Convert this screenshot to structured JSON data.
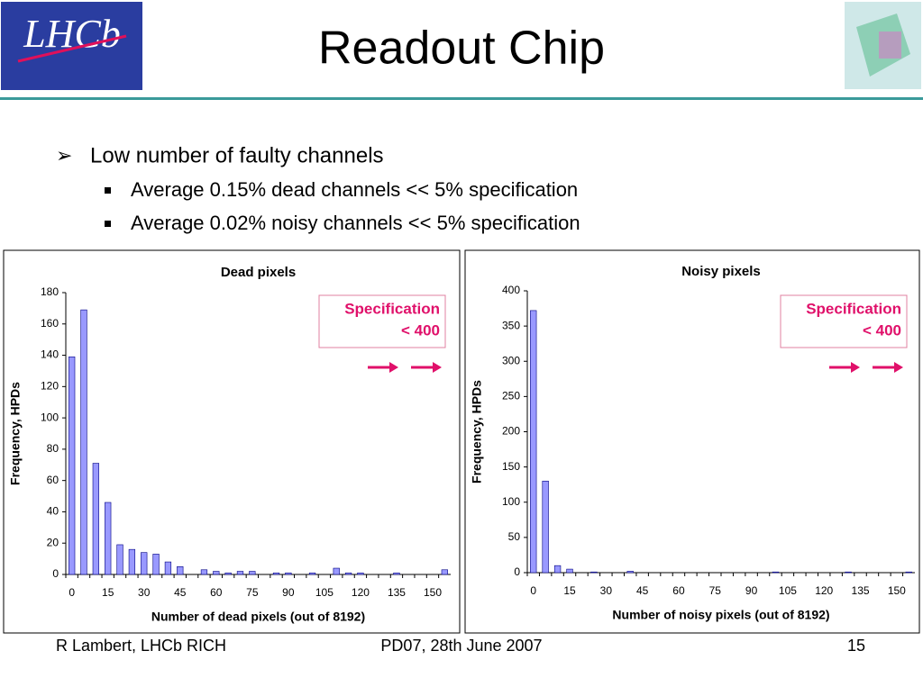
{
  "header": {
    "logo_text": "LHCb",
    "title": "Readout Chip"
  },
  "bullets": {
    "main": "Low number of faulty channels",
    "sub": [
      "Average 0.15% dead channels << 5% specification",
      "Average 0.02% noisy channels << 5% specification"
    ]
  },
  "chart_data": [
    {
      "type": "bar",
      "title": "Dead pixels",
      "x_label": "Number of dead pixels (out of 8192)",
      "y_label": "Frequency, HPDs",
      "categories": [
        "0",
        null,
        null,
        "15",
        null,
        null,
        "30",
        null,
        null,
        "45",
        null,
        null,
        "60",
        null,
        null,
        "75",
        null,
        null,
        "90",
        null,
        null,
        "105",
        null,
        null,
        "120",
        null,
        null,
        "135",
        null,
        null,
        "150",
        null
      ],
      "values": [
        139,
        169,
        71,
        46,
        19,
        16,
        14,
        13,
        8,
        5,
        0,
        3,
        2,
        1,
        2,
        2,
        0,
        1,
        1,
        0,
        1,
        0,
        4,
        1,
        1,
        0,
        0,
        1,
        0,
        0,
        0,
        3
      ],
      "color": "#9999ff",
      "ylim": [
        0,
        180
      ],
      "yticks": [
        0,
        20,
        40,
        60,
        80,
        100,
        120,
        140,
        160,
        180
      ],
      "annotation": [
        "Specification",
        "< 400"
      ]
    },
    {
      "type": "bar",
      "title": "Noisy pixels",
      "x_label": "Number of noisy pixels (out of 8192)",
      "y_label": "Frequency, HPDs",
      "categories": [
        "0",
        null,
        null,
        "15",
        null,
        null,
        "30",
        null,
        null,
        "45",
        null,
        null,
        "60",
        null,
        null,
        "75",
        null,
        null,
        "90",
        null,
        null,
        "105",
        null,
        null,
        "120",
        null,
        null,
        "135",
        null,
        null,
        "150",
        null
      ],
      "values": [
        372,
        130,
        10,
        5,
        0,
        1,
        0,
        0,
        2,
        0,
        0,
        0,
        0,
        0,
        0,
        0,
        0,
        0,
        0,
        0,
        1,
        0,
        0,
        0,
        0,
        0,
        1,
        0,
        0,
        0,
        0,
        1
      ],
      "color": "#9999ff",
      "ylim": [
        0,
        400
      ],
      "yticks": [
        0,
        50,
        100,
        150,
        200,
        250,
        300,
        350,
        400
      ],
      "annotation": [
        "Specification",
        "< 400"
      ]
    }
  ],
  "footer": {
    "left": "R Lambert, LHCb RICH",
    "center": "PD07, 28th June 2007",
    "right": "15"
  }
}
